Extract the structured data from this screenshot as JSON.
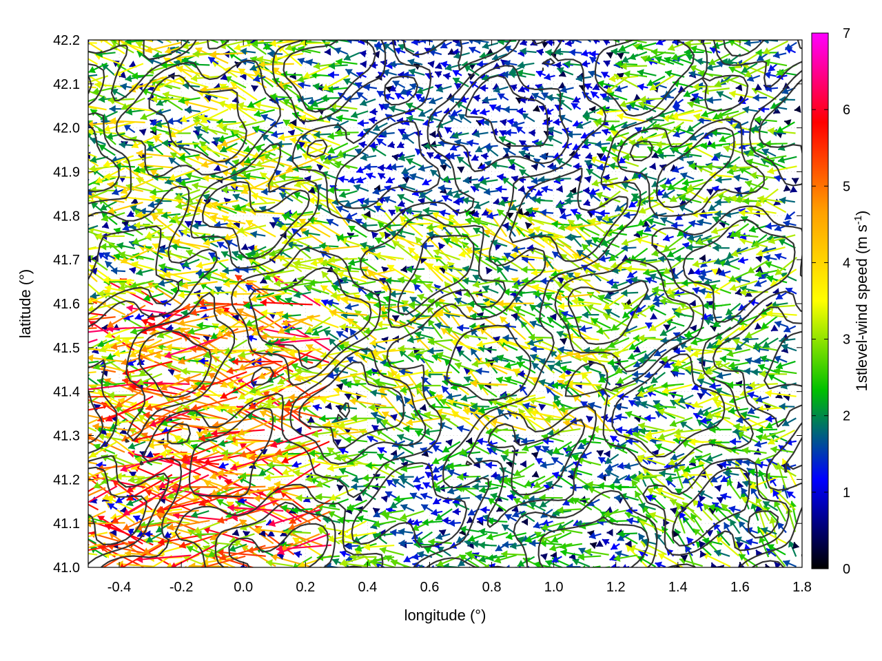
{
  "chart_data": {
    "type": "vector-field",
    "xlabel": "longitude (°)",
    "ylabel": "latitude (°)",
    "colorbar_label": "1stlevel-wind speed (m s",
    "colorbar_label_exponent": "-1",
    "colorbar_label_close": ")",
    "xlim": [
      -0.5,
      1.8
    ],
    "ylim": [
      41.0,
      42.2
    ],
    "clim": [
      0,
      7
    ],
    "x_ticks": [
      "-0.4",
      "-0.2",
      "0.0",
      "0.2",
      "0.4",
      "0.6",
      "0.8",
      "1.0",
      "1.2",
      "1.4",
      "1.6",
      "1.8"
    ],
    "x_tick_values": [
      -0.4,
      -0.2,
      0.0,
      0.2,
      0.4,
      0.6,
      0.8,
      1.0,
      1.2,
      1.4,
      1.6,
      1.8
    ],
    "y_ticks": [
      "41.0",
      "41.1",
      "41.2",
      "41.3",
      "41.4",
      "41.5",
      "41.6",
      "41.7",
      "41.8",
      "41.9",
      "42.0",
      "42.1",
      "42.2"
    ],
    "y_tick_values": [
      41.0,
      41.1,
      41.2,
      41.3,
      41.4,
      41.5,
      41.6,
      41.7,
      41.8,
      41.9,
      42.0,
      42.1,
      42.2
    ],
    "colorbar_ticks": [
      "0",
      "1",
      "2",
      "3",
      "4",
      "5",
      "6",
      "7"
    ],
    "colorbar_tick_values": [
      0,
      1,
      2,
      3,
      4,
      5,
      6,
      7
    ],
    "colormap": [
      "#000000",
      "#0000ff",
      "#00c000",
      "#ffff00",
      "#ffa000",
      "#ff0000",
      "#ff00ff"
    ],
    "grid": "dotted",
    "contour_color": "#333333",
    "dominant_wind_direction": "from east (westward arrows)",
    "wind_regions": [
      {
        "lon": [
          -0.5,
          0.3
        ],
        "lat": [
          41.0,
          41.6
        ],
        "speed": 4.5,
        "dir_deg": 178
      },
      {
        "lon": [
          -0.5,
          0.3
        ],
        "lat": [
          41.6,
          42.2
        ],
        "speed": 3.0,
        "dir_deg": 172
      },
      {
        "lon": [
          0.3,
          1.2
        ],
        "lat": [
          41.3,
          41.8
        ],
        "speed": 3.0,
        "dir_deg": 160
      },
      {
        "lon": [
          0.4,
          1.2
        ],
        "lat": [
          41.8,
          42.2
        ],
        "speed": 1.5,
        "dir_deg": 175
      },
      {
        "lon": [
          0.5,
          1.3
        ],
        "lat": [
          41.0,
          41.3
        ],
        "speed": 2.0,
        "dir_deg": 180
      },
      {
        "lon": [
          1.2,
          1.8
        ],
        "lat": [
          41.4,
          42.2
        ],
        "speed": 2.5,
        "dir_deg": 185
      },
      {
        "lon": [
          1.3,
          1.8
        ],
        "lat": [
          41.0,
          41.2
        ],
        "speed": 2.5,
        "dir_deg": 135
      }
    ]
  }
}
